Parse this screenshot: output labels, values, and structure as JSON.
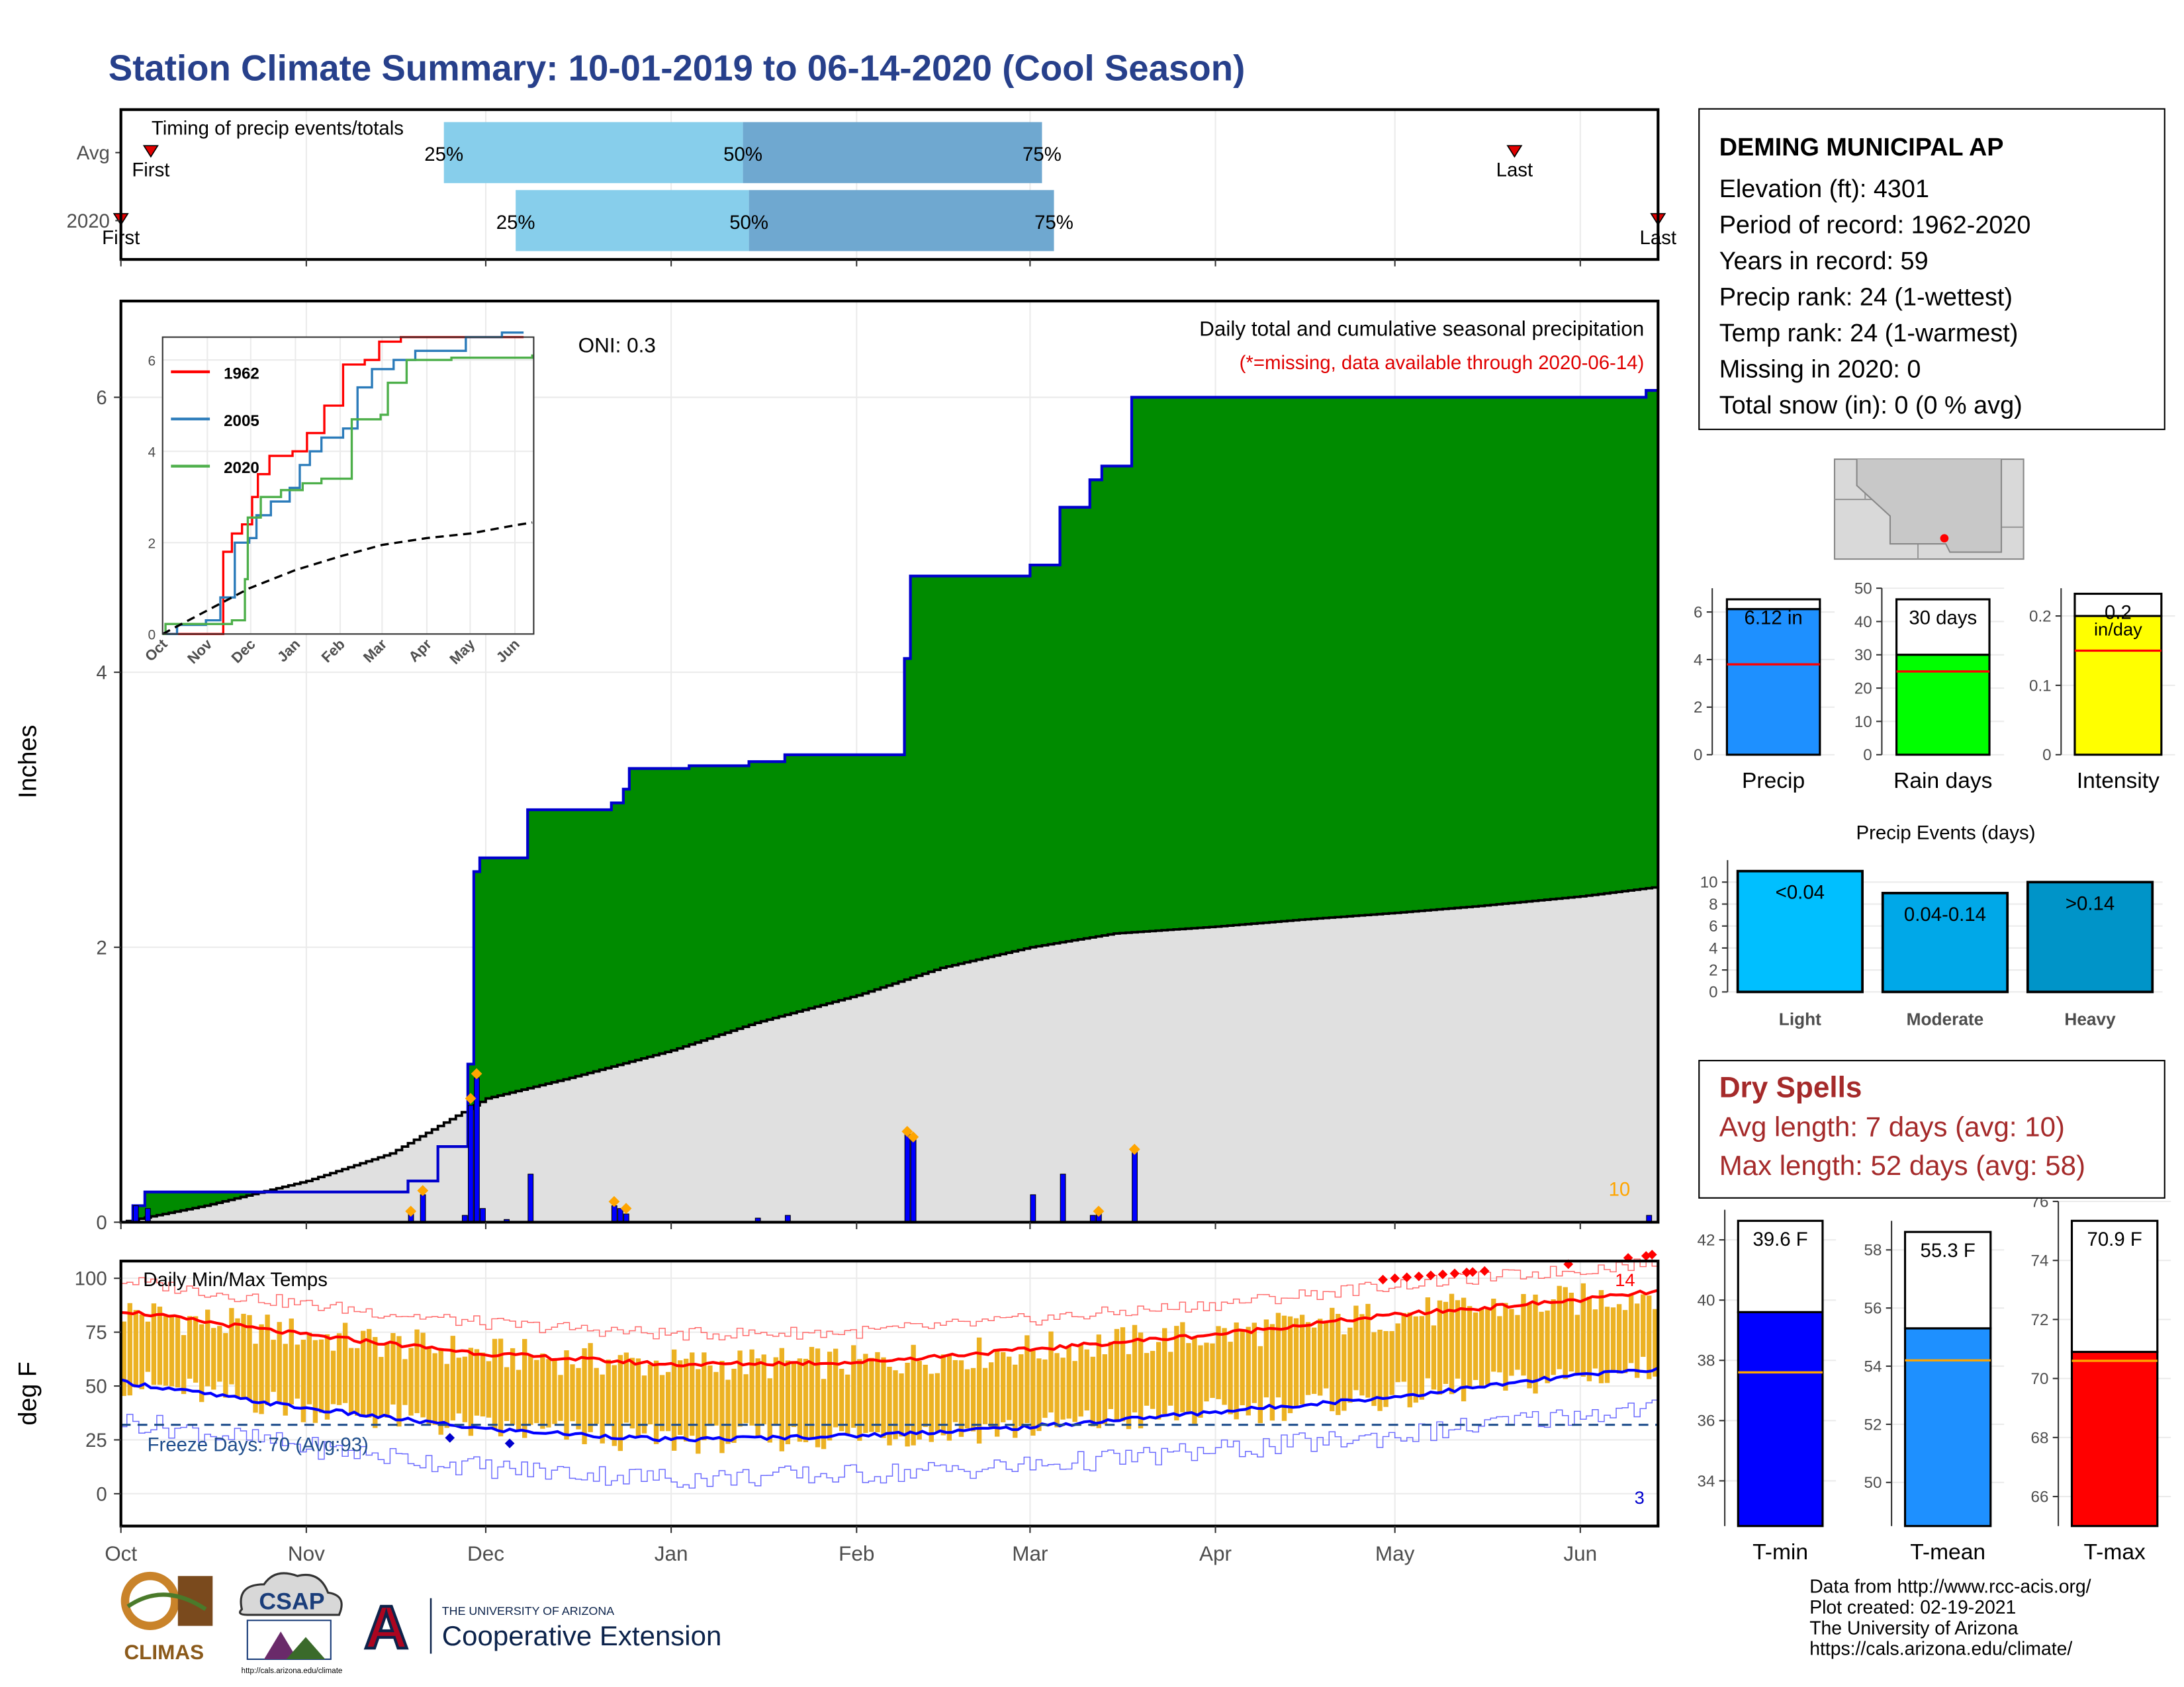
{
  "title": "Station Climate Summary: 10-01-2019 to 06-14-2020 (Cool Season)",
  "station": {
    "name": "DEMING MUNICIPAL AP",
    "lines": [
      "Elevation (ft): 4301",
      "Period of record: 1962-2020",
      "Years in record: 59",
      "Precip rank: 24 (1-wettest)",
      "Temp rank: 24 (1-warmest)",
      "Missing in 2020: 0",
      "Total snow (in): 0 (0 % avg)"
    ]
  },
  "dry_spells": {
    "heading": "Dry Spells",
    "avg": "Avg length: 7 days (avg: 10)",
    "max": "Max length: 52 days (avg: 58)"
  },
  "credits": [
    "Data from http://www.rcc-acis.org/",
    "Plot created: 02-19-2021",
    "The University of Arizona",
    "https://cals.arizona.edu/climate/"
  ],
  "logos": {
    "climas": "CLIMAS",
    "csap": "CSAP",
    "csap_url": "http://cals.arizona.edu/climate",
    "ua_line1": "THE UNIVERSITY OF ARIZONA",
    "ua_line2": "Cooperative Extension",
    "ua_letter": "A"
  },
  "colors": {
    "title": "#27408b",
    "cumulative_fill": "#008b00",
    "cumulative_line": "#0000cd",
    "avg_fill": "#e0e0e0",
    "deficit_fill": "#8b5a00",
    "daily_bar": "#0000ff",
    "event_marker": "#ffa500",
    "temp_bar": "#ecb223",
    "tmax_line": "#ff0000",
    "tmin_line": "#0000ff",
    "timing_light": "#87ceeb",
    "timing_dark": "#6fa8d0",
    "dry": "#a52a2a"
  },
  "chart_data": [
    {
      "id": "timing",
      "type": "bar",
      "title": "Timing of precip events/totals",
      "rows": [
        {
          "label": "Avg",
          "first_label": "First",
          "first": "2019-10-06",
          "last_label": "Last",
          "last": "2020-05-21",
          "quantiles": {
            "25%": "2019-11-24",
            "50%": "2020-01-13",
            "75%": "2020-03-03"
          }
        },
        {
          "label": "2020",
          "first_label": "First",
          "first": "2019-10-01",
          "last_label": "Last",
          "last": "2020-06-14",
          "quantiles": {
            "25%": "2019-12-06",
            "50%": "2020-01-14",
            "75%": "2020-03-05"
          }
        }
      ]
    },
    {
      "id": "precip",
      "type": "area",
      "title": "Daily total and cumulative seasonal precipitation",
      "subtitle": "(*=missing, data available through 2020-06-14)",
      "annotation": "ONI: 0.3",
      "count_label": "10",
      "ylabel": "Inches",
      "ylim": [
        0,
        6.7
      ],
      "yticks": [
        0,
        2,
        4,
        6
      ],
      "xlim": [
        "2019-10-01",
        "2020-06-14"
      ],
      "xticks": [
        "Oct",
        "Nov",
        "Dec",
        "Jan",
        "Feb",
        "Mar",
        "Apr",
        "May",
        "Jun"
      ],
      "cumulative_2020": [
        [
          "2019-10-01",
          0.0
        ],
        [
          "2019-10-03",
          0.12
        ],
        [
          "2019-10-05",
          0.22
        ],
        [
          "2019-11-18",
          0.3
        ],
        [
          "2019-11-23",
          0.55
        ],
        [
          "2019-11-28",
          1.15
        ],
        [
          "2019-11-29",
          2.55
        ],
        [
          "2019-11-30",
          2.65
        ],
        [
          "2019-12-07",
          2.65
        ],
        [
          "2019-12-08",
          3.0
        ],
        [
          "2019-12-22",
          3.05
        ],
        [
          "2019-12-24",
          3.15
        ],
        [
          "2019-12-25",
          3.3
        ],
        [
          "2020-01-04",
          3.32
        ],
        [
          "2020-01-14",
          3.35
        ],
        [
          "2020-01-20",
          3.4
        ],
        [
          "2020-02-08",
          3.4
        ],
        [
          "2020-02-09",
          4.1
        ],
        [
          "2020-02-10",
          4.7
        ],
        [
          "2020-03-01",
          4.78
        ],
        [
          "2020-03-06",
          5.2
        ],
        [
          "2020-03-11",
          5.4
        ],
        [
          "2020-03-13",
          5.5
        ],
        [
          "2020-03-18",
          6.0
        ],
        [
          "2020-06-12",
          6.05
        ],
        [
          "2020-06-14",
          6.12
        ]
      ],
      "cumulative_avg": [
        [
          "2019-10-01",
          0.0
        ],
        [
          "2019-10-15",
          0.12
        ],
        [
          "2019-11-01",
          0.3
        ],
        [
          "2019-11-15",
          0.5
        ],
        [
          "2019-12-01",
          0.9
        ],
        [
          "2019-12-15",
          1.05
        ],
        [
          "2020-01-01",
          1.25
        ],
        [
          "2020-01-15",
          1.45
        ],
        [
          "2020-02-01",
          1.65
        ],
        [
          "2020-02-15",
          1.85
        ],
        [
          "2020-03-01",
          2.0
        ],
        [
          "2020-03-15",
          2.1
        ],
        [
          "2020-04-01",
          2.15
        ],
        [
          "2020-04-15",
          2.2
        ],
        [
          "2020-05-01",
          2.25
        ],
        [
          "2020-05-15",
          2.3
        ],
        [
          "2020-06-01",
          2.37
        ],
        [
          "2020-06-14",
          2.44
        ]
      ],
      "daily_2020": [
        [
          "2019-10-03",
          0.12
        ],
        [
          "2019-10-05",
          0.1
        ],
        [
          "2019-11-18",
          0.08
        ],
        [
          "2019-11-20",
          0.2
        ],
        [
          "2019-11-27",
          0.05
        ],
        [
          "2019-11-28",
          0.85
        ],
        [
          "2019-11-29",
          1.05
        ],
        [
          "2019-11-30",
          0.1
        ],
        [
          "2019-12-04",
          0.02
        ],
        [
          "2019-12-08",
          0.35
        ],
        [
          "2019-12-22",
          0.12
        ],
        [
          "2019-12-23",
          0.1
        ],
        [
          "2019-12-24",
          0.06
        ],
        [
          "2020-01-15",
          0.03
        ],
        [
          "2020-01-20",
          0.05
        ],
        [
          "2020-02-09",
          0.65
        ],
        [
          "2020-02-10",
          0.6
        ],
        [
          "2020-03-01",
          0.2
        ],
        [
          "2020-03-06",
          0.35
        ],
        [
          "2020-03-11",
          0.05
        ],
        [
          "2020-03-12",
          0.08
        ],
        [
          "2020-03-18",
          0.52
        ],
        [
          "2020-06-12",
          0.05
        ]
      ],
      "event_markers": [
        [
          "2019-11-18",
          0.08
        ],
        [
          "2019-11-20",
          0.23
        ],
        [
          "2019-11-28",
          0.9
        ],
        [
          "2019-11-29",
          1.08
        ],
        [
          "2019-12-22",
          0.15
        ],
        [
          "2019-12-24",
          0.1
        ],
        [
          "2020-02-09",
          0.66
        ],
        [
          "2020-02-10",
          0.62
        ],
        [
          "2020-03-12",
          0.08
        ],
        [
          "2020-03-18",
          0.53
        ]
      ]
    },
    {
      "id": "inset",
      "type": "line",
      "ylim": [
        0,
        6.5
      ],
      "yticks": [
        0,
        2,
        4,
        6
      ],
      "xticks": [
        "Oct",
        "Nov",
        "Dec",
        "Jan",
        "Feb",
        "Mar",
        "Apr",
        "May",
        "Jun"
      ],
      "series": [
        {
          "name": "1962",
          "color": "#ff0000",
          "points": [
            [
              0,
              0
            ],
            [
              40,
              0
            ],
            [
              42,
              1.8
            ],
            [
              48,
              2.2
            ],
            [
              55,
              2.4
            ],
            [
              62,
              3.0
            ],
            [
              66,
              3.5
            ],
            [
              74,
              3.9
            ],
            [
              90,
              4.0
            ],
            [
              100,
              4.4
            ],
            [
              112,
              5.0
            ],
            [
              125,
              5.9
            ],
            [
              140,
              6.0
            ],
            [
              150,
              6.4
            ],
            [
              165,
              6.5
            ],
            [
              200,
              6.5
            ],
            [
              250,
              6.5
            ]
          ]
        },
        {
          "name": "2005",
          "color": "#2b7bba",
          "points": [
            [
              0,
              0
            ],
            [
              10,
              0.2
            ],
            [
              30,
              0.3
            ],
            [
              40,
              0.8
            ],
            [
              50,
              2.0
            ],
            [
              60,
              2.1
            ],
            [
              65,
              2.6
            ],
            [
              75,
              2.9
            ],
            [
              88,
              3.2
            ],
            [
              95,
              3.7
            ],
            [
              102,
              4.0
            ],
            [
              110,
              4.3
            ],
            [
              125,
              4.5
            ],
            [
              135,
              5.4
            ],
            [
              145,
              5.8
            ],
            [
              160,
              6.0
            ],
            [
              175,
              6.2
            ],
            [
              210,
              6.5
            ],
            [
              235,
              6.6
            ],
            [
              250,
              6.6
            ]
          ]
        },
        {
          "name": "2020",
          "color": "#4daf4a",
          "points": [
            [
              0,
              0
            ],
            [
              2,
              0.22
            ],
            [
              48,
              0.3
            ],
            [
              57,
              1.2
            ],
            [
              59,
              2.55
            ],
            [
              68,
              3.0
            ],
            [
              82,
              3.15
            ],
            [
              97,
              3.3
            ],
            [
              110,
              3.4
            ],
            [
              131,
              4.7
            ],
            [
              151,
              4.8
            ],
            [
              156,
              5.5
            ],
            [
              169,
              6.0
            ],
            [
              200,
              6.05
            ],
            [
              256,
              6.12
            ]
          ]
        },
        {
          "name": "",
          "color": "#000000",
          "dashed": true,
          "points": [
            [
              0,
              0
            ],
            [
              30,
              0.5
            ],
            [
              60,
              1.0
            ],
            [
              92,
              1.4
            ],
            [
              123,
              1.7
            ],
            [
              152,
              1.95
            ],
            [
              183,
              2.1
            ],
            [
              213,
              2.2
            ],
            [
              244,
              2.38
            ],
            [
              256,
              2.44
            ]
          ]
        }
      ]
    },
    {
      "id": "temps",
      "type": "line",
      "title": "Daily Min/Max Temps",
      "ylabel": "deg F",
      "ylim": [
        -15,
        108
      ],
      "yticks": [
        0,
        25,
        50,
        75,
        100
      ],
      "xlim": [
        "2019-10-01",
        "2020-06-14"
      ],
      "xticks": [
        "Oct",
        "Nov",
        "Dec",
        "Jan",
        "Feb",
        "Mar",
        "Apr",
        "May",
        "Jun"
      ],
      "freeze_line": 32,
      "freeze_label": "Freeze Days: 70 (Avg:93)",
      "hot_count_label": "14",
      "cold_count_label": "3",
      "avg_tmax_points": [
        [
          0,
          85
        ],
        [
          30,
          74
        ],
        [
          61,
          65
        ],
        [
          92,
          60
        ],
        [
          123,
          61
        ],
        [
          152,
          67
        ],
        [
          183,
          74
        ],
        [
          213,
          83
        ],
        [
          244,
          90
        ],
        [
          257,
          94
        ]
      ],
      "avg_tmin_points": [
        [
          0,
          52
        ],
        [
          30,
          40
        ],
        [
          61,
          30
        ],
        [
          92,
          25
        ],
        [
          123,
          27
        ],
        [
          152,
          31
        ],
        [
          183,
          38
        ],
        [
          213,
          45
        ],
        [
          244,
          55
        ],
        [
          257,
          58
        ]
      ]
    },
    {
      "id": "precip_bars",
      "type": "bar",
      "charts": [
        {
          "category": "Precip",
          "value": 6.12,
          "label": "6.12 in",
          "avg": 3.8,
          "ylim": [
            0,
            7
          ],
          "yticks": [
            0,
            2,
            4,
            6
          ],
          "color": "#1e90ff"
        },
        {
          "category": "Rain days",
          "value": 30,
          "label": "30 days",
          "avg": 25,
          "ylim": [
            0,
            50
          ],
          "yticks": [
            0,
            10,
            20,
            30,
            40,
            50
          ],
          "color": "#00ff00"
        },
        {
          "category": "Intensity",
          "value": 0.2,
          "label": "0.2",
          "unit_label": "in/day",
          "avg": 0.15,
          "ylim": [
            0,
            0.24
          ],
          "yticks": [
            0.0,
            0.1,
            0.2
          ],
          "color": "#ffff00"
        }
      ]
    },
    {
      "id": "events",
      "type": "bar",
      "title": "Precip Events (days)",
      "categories": [
        "Light",
        "Moderate",
        "Heavy"
      ],
      "values": [
        11,
        9,
        10
      ],
      "bar_labels": [
        "<0.04",
        "0.04-0.14",
        ">0.14"
      ],
      "ylim": [
        0,
        12
      ],
      "yticks": [
        0,
        2,
        4,
        6,
        8,
        10
      ],
      "colors": [
        "#00bfff",
        "#00a8e8",
        "#0094c8"
      ]
    },
    {
      "id": "temp_bars",
      "type": "bar",
      "charts": [
        {
          "category": "T-min",
          "value": 39.6,
          "label": "39.6 F",
          "avg": 37.6,
          "ylim": [
            32.5,
            43
          ],
          "yticks": [
            34,
            36,
            38,
            40,
            42
          ],
          "color": "#0000ff"
        },
        {
          "category": "T-mean",
          "value": 55.3,
          "label": "55.3 F",
          "avg": 54.2,
          "ylim": [
            48.5,
            59
          ],
          "yticks": [
            50,
            52,
            54,
            56,
            58
          ],
          "color": "#1e90ff"
        },
        {
          "category": "T-max",
          "value": 70.9,
          "label": "70.9 F",
          "avg": 70.6,
          "ylim": [
            65,
            76
          ],
          "yticks": [
            66,
            68,
            70,
            72,
            74,
            76
          ],
          "color": "#ff0000"
        }
      ]
    }
  ]
}
